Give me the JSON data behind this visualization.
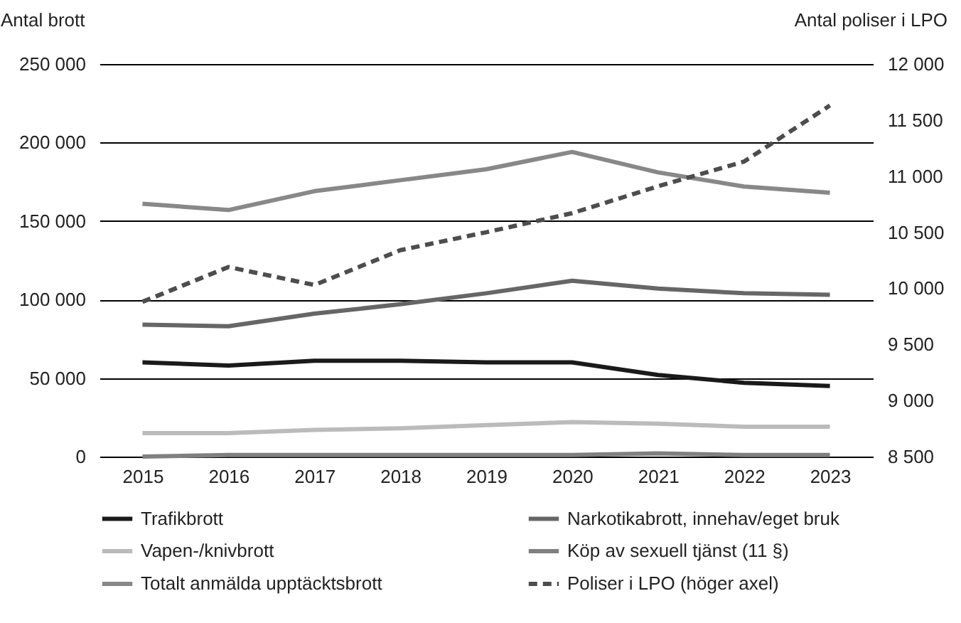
{
  "chart_data": {
    "type": "line",
    "ylabel": "Antal brott",
    "y2label": "Antal poliser i LPO",
    "categories": [
      "2015",
      "2016",
      "2017",
      "2018",
      "2019",
      "2020",
      "2021",
      "2022",
      "2023"
    ],
    "series": [
      {
        "name": "Trafikbrott",
        "color": "#1a1a1a",
        "values": [
          60000,
          58000,
          61000,
          61000,
          60000,
          60000,
          52000,
          47000,
          45000
        ]
      },
      {
        "name": "Narkotikabrott, innehav/eget bruk",
        "color": "#666666",
        "values": [
          84000,
          83000,
          91000,
          97000,
          104000,
          112000,
          107000,
          104000,
          103000
        ]
      },
      {
        "name": "Vapen-/knivbrott",
        "color": "#bbbbbb",
        "values": [
          15000,
          15000,
          17000,
          18000,
          20000,
          22000,
          21000,
          19000,
          19000
        ]
      },
      {
        "name": "Köp av sexuell tjänst (11 §)",
        "color": "#808080",
        "values": [
          0,
          1000,
          1000,
          1000,
          1000,
          1000,
          2000,
          1000,
          1000
        ]
      },
      {
        "name": "Totalt anmälda upptäcktsbrott",
        "color": "#888888",
        "values": [
          161000,
          157000,
          169000,
          176000,
          183000,
          194000,
          181000,
          172000,
          168000
        ]
      },
      {
        "name": "Poliser i LPO (höger axel)",
        "color": "#4d4d4d",
        "axis": "y2",
        "line_style": "dashed",
        "values": [
          9880,
          10190,
          10030,
          10340,
          10500,
          10670,
          10910,
          11130,
          11630
        ]
      }
    ],
    "ylim": [
      0,
      250000
    ],
    "yticks": [
      0,
      50000,
      100000,
      150000,
      200000,
      250000
    ],
    "y2lim": [
      8500,
      12000
    ],
    "y2ticks": [
      8500,
      9000,
      9500,
      10000,
      10500,
      11000,
      11500,
      12000
    ],
    "grid": "y",
    "legend": "bottom"
  }
}
